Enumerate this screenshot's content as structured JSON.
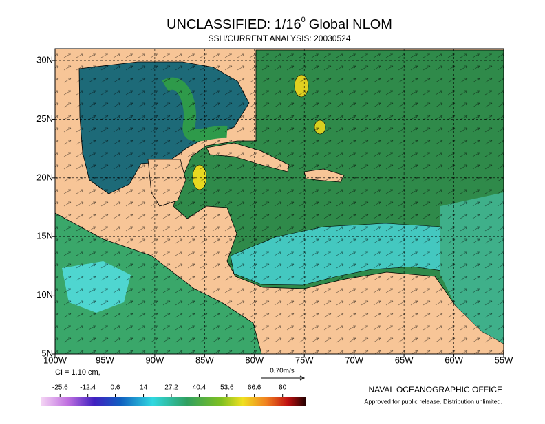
{
  "title": {
    "main": "UNCLASSIFIED: 1/16",
    "superscript": "0",
    "rest": "Global NLOM"
  },
  "subtitle": "SSH/CURRENT ANALYSIS: 20030524",
  "map": {
    "lonlim": [
      -100,
      -55
    ],
    "latlim": [
      5,
      31
    ],
    "grid": true,
    "xticks": [
      {
        "value": -100,
        "label": "100W"
      },
      {
        "value": -95,
        "label": "95W"
      },
      {
        "value": -90,
        "label": "90W"
      },
      {
        "value": -85,
        "label": "85W"
      },
      {
        "value": -80,
        "label": "80W"
      },
      {
        "value": -75,
        "label": "75W"
      },
      {
        "value": -70,
        "label": "70W"
      },
      {
        "value": -65,
        "label": "65W"
      },
      {
        "value": -60,
        "label": "60W"
      },
      {
        "value": -55,
        "label": "55W"
      }
    ],
    "yticks": [
      {
        "value": 5,
        "label": "5N"
      },
      {
        "value": 10,
        "label": "10N"
      },
      {
        "value": 15,
        "label": "15N"
      },
      {
        "value": 20,
        "label": "20N"
      },
      {
        "value": 25,
        "label": "25N"
      },
      {
        "value": 30,
        "label": "30N"
      }
    ]
  },
  "contour_interval": "CI = 1.10 cm,",
  "vector_scale": "0.70m/s",
  "colorbar": {
    "lim": [
      -34.5,
      91.2
    ],
    "ticks": [
      -25.6,
      -12.4,
      0.6,
      14,
      27.2,
      40.4,
      53.6,
      66.6,
      80
    ]
  },
  "footer": {
    "office": "NAVAL OCEANOGRAPHIC OFFICE",
    "note": "Approved for public release. Distribution unlimited."
  }
}
